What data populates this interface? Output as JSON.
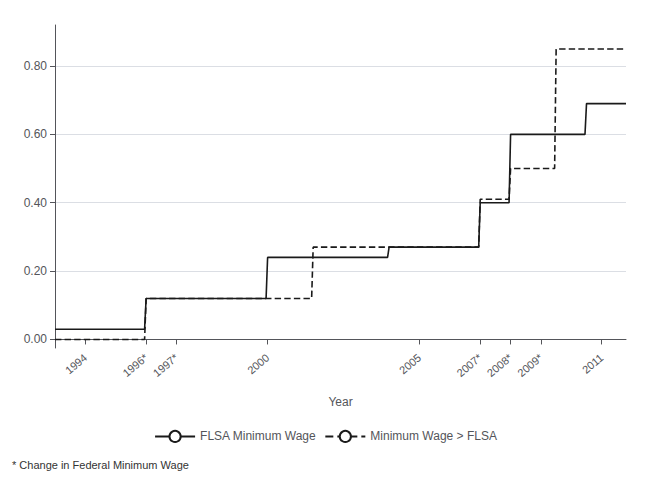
{
  "chart_data": {
    "type": "line",
    "xlabel": "Year",
    "xlim": [
      1993.0,
      2011.8
    ],
    "xticks": [
      1994,
      {
        "value": 1996,
        "label": "1996*"
      },
      {
        "value": 1997,
        "label": "1997*"
      },
      2000,
      2005,
      {
        "value": 2007,
        "label": "2007*"
      },
      {
        "value": 2008,
        "label": "2008*"
      },
      {
        "value": 2009,
        "label": "2009*"
      },
      2011
    ],
    "ylim": [
      -0.025,
      0.92
    ],
    "yticks": [
      {
        "value": 0.0,
        "label": "0.00"
      },
      {
        "value": 0.2,
        "label": "0.20"
      },
      {
        "value": 0.4,
        "label": "0.40"
      },
      {
        "value": 0.6,
        "label": "0.60"
      },
      {
        "value": 0.8,
        "label": "0.80"
      }
    ],
    "grid": true,
    "legend": "bottom",
    "annotations": [
      "* Change in Federal Minimum Wage"
    ],
    "series": [
      {
        "name": "FLSA Minimum Wage",
        "color": "#1a1a1a",
        "line_style": "solid",
        "x": [
          1993.0,
          1995.95,
          1996.0,
          1999.95,
          2000.0,
          2003.95,
          2004.0,
          2006.95,
          2007.0,
          2007.95,
          2008.0,
          2009.0,
          2010.45,
          2010.5,
          2011.8
        ],
        "values": [
          0.03,
          0.03,
          0.12,
          0.12,
          0.24,
          0.24,
          0.27,
          0.27,
          0.4,
          0.4,
          0.6,
          0.6,
          0.6,
          0.69,
          0.69
        ]
      },
      {
        "name": "Minimum Wage > FLSA",
        "color": "#1a1a1a",
        "line_style": "dashed",
        "x": [
          1993.0,
          1995.95,
          1996.0,
          2001.45,
          2001.5,
          2003.95,
          2004.0,
          2006.95,
          2007.0,
          2007.95,
          2008.0,
          2009.45,
          2009.5,
          2011.8
        ],
        "values": [
          0.0,
          0.0,
          0.12,
          0.12,
          0.27,
          0.27,
          0.27,
          0.27,
          0.41,
          0.41,
          0.5,
          0.5,
          0.85,
          0.85
        ]
      }
    ]
  }
}
